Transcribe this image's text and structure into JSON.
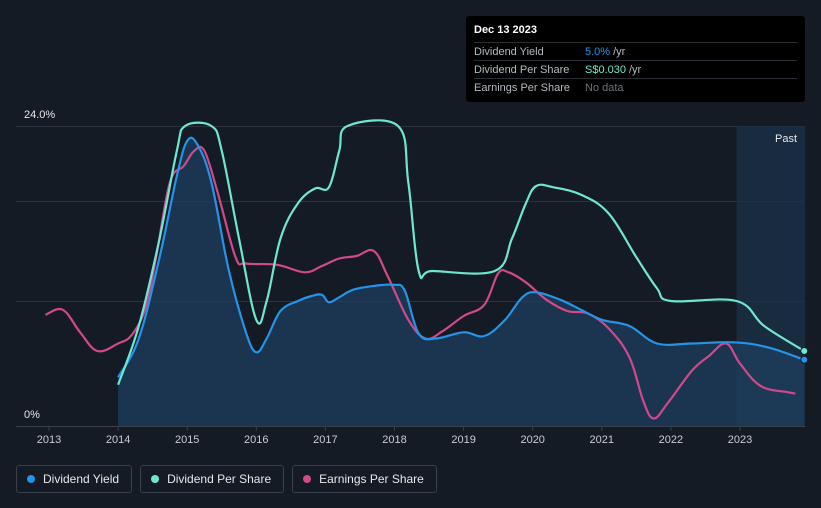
{
  "tooltip": {
    "date": "Dec 13 2023",
    "rows": [
      {
        "label": "Dividend Yield",
        "value": "5.0%",
        "unit": "/yr"
      },
      {
        "label": "Dividend Per Share",
        "value": "S$0.030",
        "unit": "/yr"
      },
      {
        "label": "Earnings Per Share",
        "value": "No data",
        "unit": ""
      }
    ]
  },
  "legend": [
    {
      "label": "Dividend Yield",
      "color": "#2394e8"
    },
    {
      "label": "Dividend Per Share",
      "color": "#6ee7d0"
    },
    {
      "label": "Earnings Per Share",
      "color": "#d0498a"
    }
  ],
  "chart_data": {
    "type": "line",
    "ylim": [
      0,
      24
    ],
    "ytick_labels": [
      "24.0%",
      "0%"
    ],
    "x_ticks": [
      2013,
      2014,
      2015,
      2016,
      2017,
      2018,
      2019,
      2020,
      2021,
      2022,
      2023
    ],
    "xlim": [
      2013.0,
      2023.95
    ],
    "past_region_start": 2022.95,
    "past_label": "Past",
    "series": [
      {
        "name": "Dividend Yield",
        "color": "#2394e8",
        "fill": true,
        "points": [
          [
            2014.0,
            3.9
          ],
          [
            2014.3,
            7.0
          ],
          [
            2014.6,
            13.5
          ],
          [
            2014.85,
            20.0
          ],
          [
            2015.0,
            22.8
          ],
          [
            2015.15,
            22.5
          ],
          [
            2015.35,
            19.5
          ],
          [
            2015.6,
            12.5
          ],
          [
            2015.85,
            7.5
          ],
          [
            2016.0,
            5.9
          ],
          [
            2016.15,
            7.0
          ],
          [
            2016.35,
            9.2
          ],
          [
            2016.6,
            10.0
          ],
          [
            2016.8,
            10.4
          ],
          [
            2016.95,
            10.5
          ],
          [
            2017.05,
            9.9
          ],
          [
            2017.2,
            10.3
          ],
          [
            2017.4,
            10.9
          ],
          [
            2017.7,
            11.2
          ],
          [
            2018.0,
            11.3
          ],
          [
            2018.15,
            10.8
          ],
          [
            2018.35,
            7.4
          ],
          [
            2018.6,
            7.0
          ],
          [
            2019.0,
            7.5
          ],
          [
            2019.3,
            7.2
          ],
          [
            2019.6,
            8.5
          ],
          [
            2019.85,
            10.3
          ],
          [
            2020.05,
            10.7
          ],
          [
            2020.4,
            10.1
          ],
          [
            2020.7,
            9.3
          ],
          [
            2021.0,
            8.5
          ],
          [
            2021.4,
            8.0
          ],
          [
            2021.8,
            6.6
          ],
          [
            2022.3,
            6.6
          ],
          [
            2022.9,
            6.7
          ],
          [
            2023.4,
            6.3
          ],
          [
            2023.93,
            5.3
          ]
        ]
      },
      {
        "name": "Dividend Per Share",
        "color": "#6ee7d0",
        "fill": false,
        "points": [
          [
            2014.0,
            3.3
          ],
          [
            2014.3,
            8.0
          ],
          [
            2014.6,
            15.0
          ],
          [
            2014.85,
            22.0
          ],
          [
            2014.97,
            24.0
          ],
          [
            2015.35,
            24.0
          ],
          [
            2015.5,
            22.0
          ],
          [
            2015.75,
            15.0
          ],
          [
            2016.0,
            8.5
          ],
          [
            2016.15,
            10.0
          ],
          [
            2016.35,
            15.0
          ],
          [
            2016.6,
            17.8
          ],
          [
            2016.85,
            19.0
          ],
          [
            2017.05,
            19.1
          ],
          [
            2017.2,
            22.0
          ],
          [
            2017.32,
            24.0
          ],
          [
            2018.05,
            24.0
          ],
          [
            2018.2,
            19.5
          ],
          [
            2018.35,
            12.4
          ],
          [
            2018.55,
            12.4
          ],
          [
            2019.45,
            12.4
          ],
          [
            2019.7,
            15.0
          ],
          [
            2019.9,
            17.8
          ],
          [
            2020.05,
            19.2
          ],
          [
            2020.3,
            19.1
          ],
          [
            2020.7,
            18.5
          ],
          [
            2021.1,
            17.0
          ],
          [
            2021.5,
            13.5
          ],
          [
            2021.8,
            11.0
          ],
          [
            2022.0,
            10.0
          ],
          [
            2022.95,
            10.0
          ],
          [
            2023.35,
            8.0
          ],
          [
            2023.93,
            6.0
          ]
        ]
      },
      {
        "name": "Earnings Per Share",
        "color": "#d0498a",
        "fill": false,
        "points": [
          [
            2012.95,
            8.9
          ],
          [
            2013.2,
            9.3
          ],
          [
            2013.45,
            7.5
          ],
          [
            2013.7,
            6.0
          ],
          [
            2014.0,
            6.6
          ],
          [
            2014.2,
            7.3
          ],
          [
            2014.4,
            9.5
          ],
          [
            2014.55,
            13.5
          ],
          [
            2014.75,
            19.5
          ],
          [
            2014.95,
            20.8
          ],
          [
            2015.1,
            22.0
          ],
          [
            2015.25,
            22.0
          ],
          [
            2015.45,
            18.5
          ],
          [
            2015.7,
            13.5
          ],
          [
            2015.85,
            13.0
          ],
          [
            2016.3,
            12.9
          ],
          [
            2016.7,
            12.3
          ],
          [
            2016.95,
            12.8
          ],
          [
            2017.2,
            13.4
          ],
          [
            2017.45,
            13.6
          ],
          [
            2017.7,
            14.0
          ],
          [
            2017.9,
            12.0
          ],
          [
            2018.2,
            8.5
          ],
          [
            2018.45,
            7.0
          ],
          [
            2018.7,
            7.6
          ],
          [
            2019.0,
            8.8
          ],
          [
            2019.3,
            9.7
          ],
          [
            2019.5,
            12.2
          ],
          [
            2019.65,
            12.3
          ],
          [
            2019.9,
            11.5
          ],
          [
            2020.2,
            10.1
          ],
          [
            2020.5,
            9.2
          ],
          [
            2020.8,
            9.0
          ],
          [
            2021.1,
            7.8
          ],
          [
            2021.4,
            5.5
          ],
          [
            2021.6,
            2.0
          ],
          [
            2021.75,
            0.6
          ],
          [
            2021.95,
            1.8
          ],
          [
            2022.3,
            4.4
          ],
          [
            2022.55,
            5.6
          ],
          [
            2022.8,
            6.6
          ],
          [
            2023.0,
            5.0
          ],
          [
            2023.3,
            3.2
          ],
          [
            2023.7,
            2.7
          ],
          [
            2023.8,
            2.6
          ]
        ]
      }
    ]
  }
}
